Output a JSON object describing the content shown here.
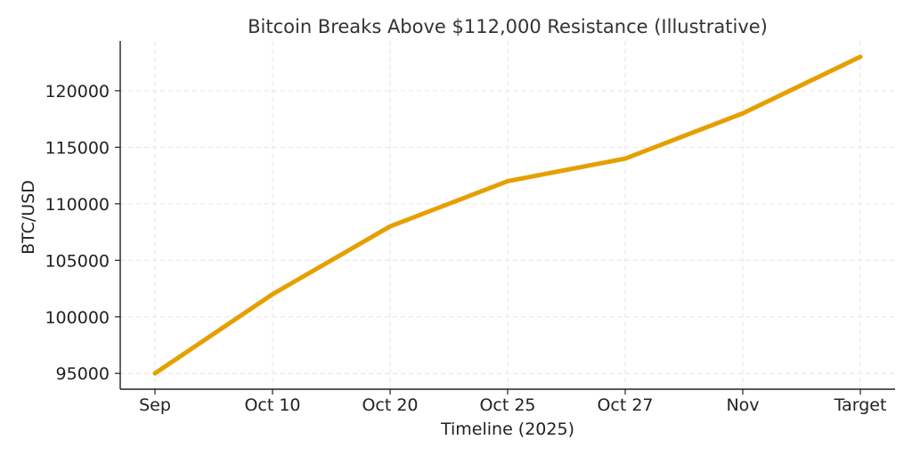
{
  "chart_data": {
    "type": "line",
    "title": "Bitcoin Breaks Above $112,000 Resistance (Illustrative)",
    "xlabel": "Timeline (2025)",
    "ylabel": "BTC/USD",
    "categories": [
      "Sep",
      "Oct 10",
      "Oct 20",
      "Oct 25",
      "Oct 27",
      "Nov",
      "Target"
    ],
    "series": [
      {
        "values": [
          95000,
          102000,
          108000,
          112000,
          114000,
          118000,
          123000
        ],
        "color": "#E69F00"
      }
    ],
    "yticks": [
      95000,
      100000,
      105000,
      110000,
      115000,
      120000
    ],
    "ytick_labels": [
      "95000",
      "100000",
      "105000",
      "110000",
      "115000",
      "120000"
    ],
    "ylim": [
      93600,
      124400
    ],
    "grid": true,
    "legend": "none"
  }
}
